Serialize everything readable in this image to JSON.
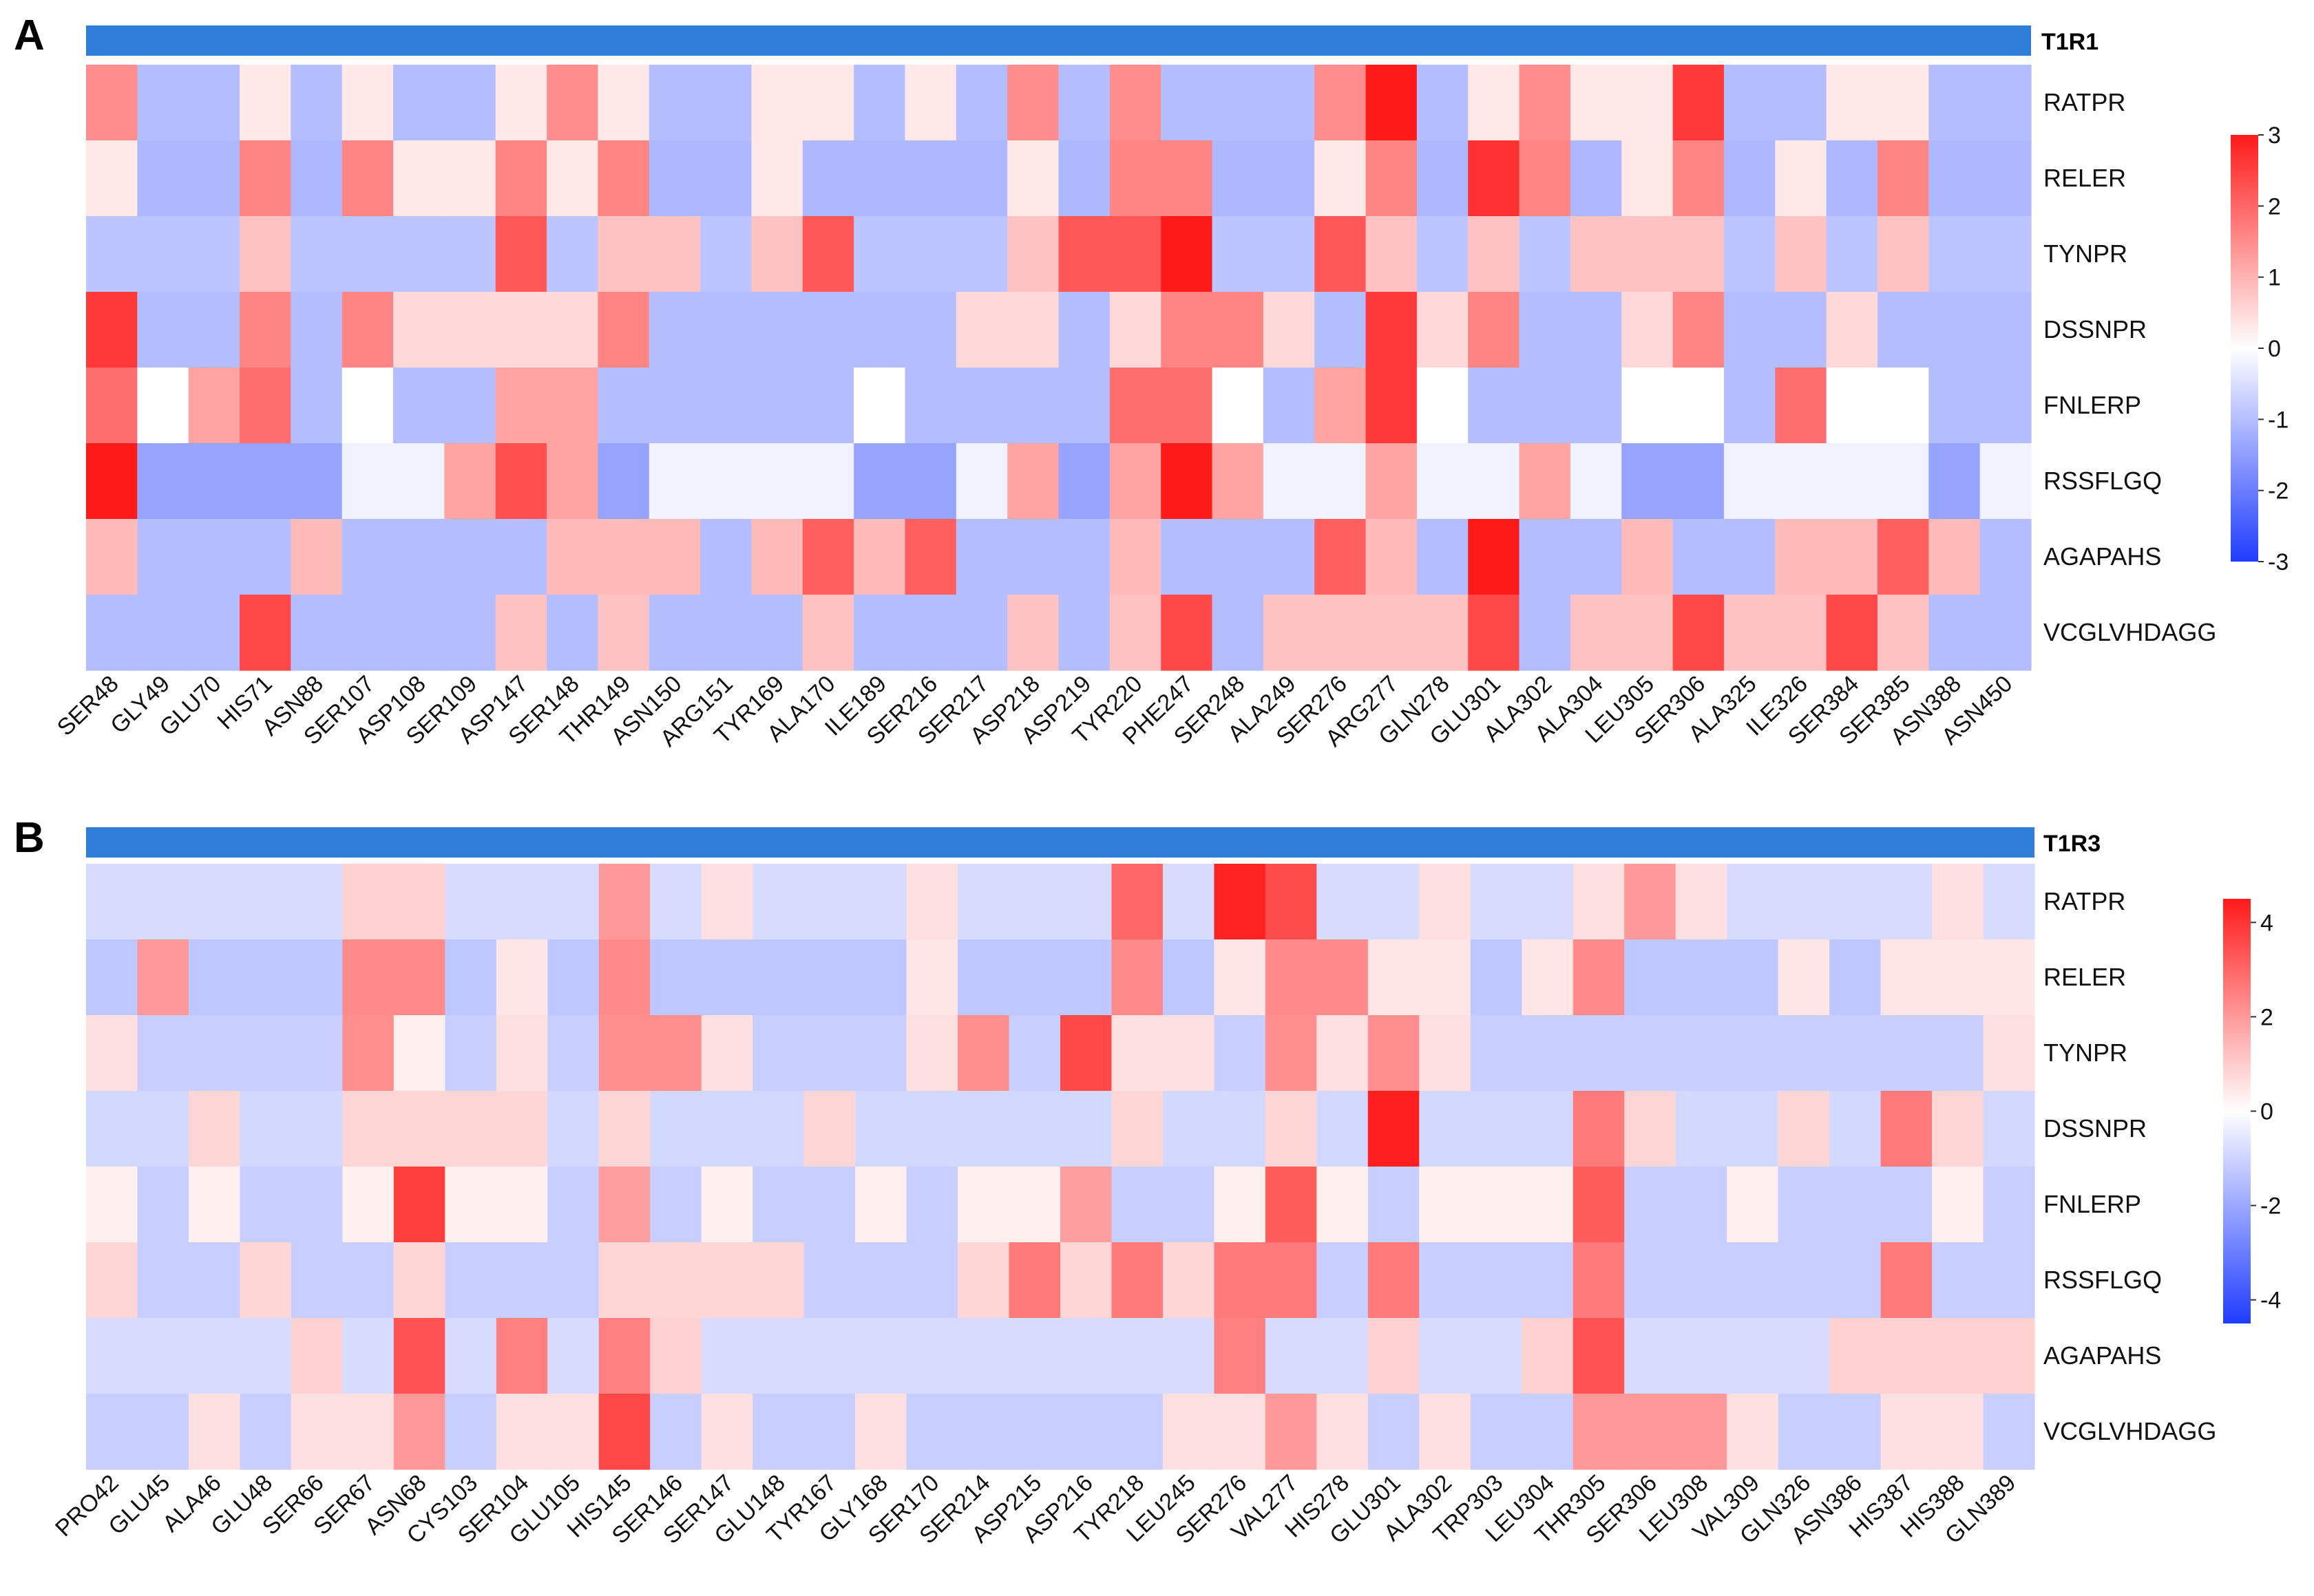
{
  "chart_data": [
    {
      "type": "heatmap",
      "panel_label": "A",
      "receptor": "T1R1",
      "rows": [
        "RATPR",
        "RELER",
        "TYNPR",
        "DSSNPR",
        "FNLERP",
        "RSSFLGQ",
        "AGAPAHS",
        "VCGLVHDAGG"
      ],
      "columns": [
        "SER48",
        "GLY49",
        "GLU70",
        "HIS71",
        "ASN88",
        "SER107",
        "ASP108",
        "SER109",
        "ASP147",
        "SER148",
        "THR149",
        "ASN150",
        "ARG151",
        "TYR169",
        "ALA170",
        "ILE189",
        "SER216",
        "SER217",
        "ASP218",
        "ASP219",
        "TYR220",
        "PHE247",
        "SER248",
        "ALA249",
        "SER276",
        "ARG277",
        "GLN278",
        "GLU301",
        "ALA302",
        "ALA304",
        "LEU305",
        "SER306",
        "ALA325",
        "ILE326",
        "SER384",
        "SER385",
        "ASN388",
        "ASN450"
      ],
      "values": [
        [
          1.5,
          -1.0,
          -1.0,
          0.3,
          -1.0,
          0.3,
          -1.0,
          -1.0,
          0.3,
          1.5,
          0.3,
          -1.0,
          -1.0,
          0.3,
          0.3,
          -1.0,
          0.3,
          -1.0,
          1.5,
          -1.0,
          1.5,
          -1.0,
          -1.0,
          -1.0,
          1.5,
          3.2,
          -1.0,
          0.3,
          1.5,
          0.3,
          0.3,
          2.6,
          -1.0,
          -1.0,
          0.3,
          0.3,
          -1.0,
          -1.0
        ],
        [
          0.3,
          -1.1,
          -1.1,
          1.6,
          -1.1,
          1.6,
          0.3,
          0.3,
          1.6,
          0.3,
          1.6,
          -1.1,
          -1.1,
          0.3,
          -1.1,
          -1.1,
          -1.1,
          -1.1,
          0.3,
          -1.1,
          1.6,
          1.6,
          -1.1,
          -1.1,
          0.3,
          1.6,
          -1.1,
          2.7,
          1.6,
          -1.1,
          0.3,
          1.6,
          -1.1,
          0.3,
          -1.1,
          1.6,
          -1.1,
          -1.1
        ],
        [
          -0.9,
          -0.9,
          -0.9,
          0.8,
          -0.9,
          -0.9,
          -0.9,
          -0.9,
          2.2,
          -0.9,
          0.8,
          0.8,
          -0.9,
          0.8,
          2.2,
          -0.9,
          -0.9,
          -0.9,
          0.8,
          2.2,
          2.2,
          3.0,
          -0.9,
          -0.9,
          2.2,
          0.8,
          -0.9,
          0.8,
          -0.9,
          0.8,
          0.8,
          0.8,
          -0.9,
          0.8,
          -0.9,
          0.8,
          -0.9,
          -0.9
        ],
        [
          2.6,
          -1.0,
          -1.0,
          1.6,
          -1.0,
          1.6,
          0.5,
          0.5,
          0.5,
          0.5,
          1.6,
          -1.0,
          -1.0,
          -1.0,
          -1.0,
          -1.0,
          -1.0,
          0.5,
          0.5,
          -1.0,
          0.5,
          1.6,
          1.6,
          0.5,
          -1.0,
          2.6,
          0.5,
          1.6,
          -1.0,
          -1.0,
          0.5,
          1.6,
          -1.0,
          -1.0,
          0.5,
          -1.0,
          -1.0,
          -1.0
        ],
        [
          1.9,
          0.0,
          1.2,
          1.9,
          -1.0,
          0.0,
          -1.0,
          -1.0,
          1.2,
          1.2,
          -1.0,
          -1.0,
          -1.0,
          -1.0,
          -1.0,
          0.0,
          -1.0,
          -1.0,
          -1.0,
          -1.0,
          1.9,
          1.9,
          0.0,
          -1.0,
          1.2,
          2.6,
          0.0,
          -1.0,
          -1.0,
          -1.0,
          0.0,
          0.0,
          -1.0,
          1.9,
          0.0,
          0.0,
          -1.0,
          -1.0
        ],
        [
          3.0,
          -1.4,
          -1.4,
          -1.4,
          -1.4,
          -0.2,
          -0.2,
          1.2,
          2.3,
          1.2,
          -1.4,
          -0.2,
          -0.2,
          -0.2,
          -0.2,
          -1.4,
          -1.4,
          -0.2,
          1.2,
          -1.4,
          1.2,
          3.0,
          1.2,
          -0.2,
          -0.2,
          1.2,
          -0.2,
          -0.2,
          1.2,
          -0.2,
          -1.4,
          -1.4,
          -0.2,
          -0.2,
          -0.2,
          -0.2,
          -1.4,
          -0.2
        ],
        [
          0.9,
          -1.0,
          -1.0,
          -1.0,
          0.9,
          -1.0,
          -1.0,
          -1.0,
          -1.0,
          0.9,
          0.9,
          0.9,
          -1.0,
          0.9,
          2.1,
          0.9,
          2.1,
          -1.0,
          -1.0,
          -1.0,
          0.9,
          -1.0,
          -1.0,
          -1.0,
          2.1,
          0.9,
          -1.0,
          3.2,
          -1.0,
          -1.0,
          0.9,
          -1.0,
          -1.0,
          0.9,
          0.9,
          2.1,
          0.9,
          -1.0
        ],
        [
          -1.0,
          -1.0,
          -1.0,
          2.4,
          -1.0,
          -1.0,
          -1.0,
          -1.0,
          0.8,
          -1.0,
          0.8,
          -1.0,
          -1.0,
          -1.0,
          0.8,
          -1.0,
          -1.0,
          -1.0,
          0.8,
          -1.0,
          0.8,
          2.4,
          -1.0,
          0.8,
          0.8,
          0.8,
          0.8,
          2.4,
          -1.0,
          0.8,
          0.8,
          2.4,
          0.8,
          0.8,
          2.4,
          0.8,
          -1.0,
          -1.0
        ]
      ],
      "color_scale": {
        "min": -3,
        "max": 3,
        "ticks": [
          "3",
          "2",
          "1",
          "0",
          "-1",
          "-2",
          "-3"
        ],
        "colors": [
          "#1f3cff",
          "#ffffff",
          "#ff1a1a"
        ]
      }
    },
    {
      "type": "heatmap",
      "panel_label": "B",
      "receptor": "T1R3",
      "rows": [
        "RATPR",
        "RELER",
        "TYNPR",
        "DSSNPR",
        "FNLERP",
        "RSSFLGQ",
        "AGAPAHS",
        "VCGLVHDAGG"
      ],
      "columns": [
        "PRO42",
        "GLU45",
        "ALA46",
        "GLU48",
        "SER66",
        "SER67",
        "ASN68",
        "CYS103",
        "SER104",
        "GLU105",
        "HIS145",
        "SER146",
        "SER147",
        "GLU148",
        "TYR167",
        "GLY168",
        "SER170",
        "SER214",
        "ASP215",
        "ASP216",
        "TYR218",
        "LEU245",
        "SER276",
        "VAL277",
        "HIS278",
        "GLU301",
        "ALA302",
        "TRP303",
        "LEU304",
        "THR305",
        "SER306",
        "LEU308",
        "VAL309",
        "GLN326",
        "ASN386",
        "HIS387",
        "HIS388",
        "GLN389"
      ],
      "values": [
        [
          -0.8,
          -0.8,
          -0.8,
          -0.8,
          -0.8,
          0.9,
          0.9,
          -0.8,
          -0.8,
          -0.8,
          2.0,
          -0.8,
          0.6,
          -0.8,
          -0.8,
          -0.8,
          0.6,
          -0.8,
          -0.8,
          -0.8,
          3.0,
          -0.8,
          4.3,
          3.5,
          -0.8,
          -0.8,
          0.6,
          -0.8,
          -0.8,
          0.6,
          2.0,
          0.6,
          -0.8,
          -0.8,
          -0.8,
          -0.8,
          0.6,
          -0.8
        ],
        [
          -1.3,
          2.0,
          -1.3,
          -1.3,
          -1.3,
          2.3,
          2.3,
          -1.3,
          0.5,
          -1.3,
          2.3,
          -1.3,
          -1.3,
          -1.3,
          -1.3,
          -1.3,
          0.5,
          -1.3,
          -1.3,
          -1.3,
          2.3,
          -1.3,
          0.5,
          2.3,
          2.3,
          0.5,
          0.5,
          -1.3,
          0.5,
          2.3,
          -1.3,
          -1.3,
          -1.3,
          0.5,
          -1.3,
          0.5,
          0.5,
          0.5
        ],
        [
          0.6,
          -1.1,
          -1.1,
          -1.1,
          -1.1,
          2.2,
          0.3,
          -1.1,
          0.6,
          -1.1,
          2.2,
          2.2,
          0.6,
          -1.1,
          -1.1,
          -1.1,
          0.6,
          2.2,
          -1.1,
          3.6,
          0.6,
          0.6,
          -1.1,
          2.2,
          0.6,
          2.2,
          0.6,
          -1.1,
          -1.1,
          -1.1,
          -1.1,
          -1.1,
          -1.1,
          -1.1,
          -1.1,
          -1.1,
          -1.1,
          0.6
        ],
        [
          -0.9,
          -0.9,
          0.8,
          -0.9,
          -0.9,
          0.8,
          0.8,
          0.8,
          0.8,
          -0.9,
          0.8,
          -0.9,
          -0.9,
          -0.9,
          0.8,
          -0.9,
          -0.9,
          -0.9,
          -0.9,
          -0.9,
          0.8,
          -0.9,
          -0.9,
          0.8,
          -0.9,
          4.4,
          -0.9,
          -0.9,
          -0.9,
          2.6,
          0.8,
          -0.9,
          -0.9,
          0.8,
          -0.9,
          2.6,
          0.8,
          -0.9
        ],
        [
          0.3,
          -1.1,
          0.3,
          -1.1,
          -1.1,
          0.3,
          3.8,
          0.3,
          0.3,
          -1.1,
          1.9,
          -1.1,
          0.3,
          -1.1,
          -1.1,
          0.3,
          -1.1,
          0.3,
          0.3,
          1.9,
          -1.1,
          -1.1,
          0.3,
          3.2,
          0.3,
          -1.1,
          0.3,
          0.3,
          0.3,
          3.2,
          -1.1,
          -1.1,
          0.3,
          -1.1,
          -1.1,
          -1.1,
          0.3,
          -1.1
        ],
        [
          0.8,
          -1.1,
          -1.1,
          0.8,
          -1.1,
          -1.1,
          0.8,
          -1.1,
          -1.1,
          -1.1,
          0.8,
          0.8,
          0.8,
          0.8,
          -1.1,
          -1.1,
          -1.1,
          0.8,
          2.6,
          0.8,
          2.6,
          0.8,
          2.6,
          2.6,
          -1.1,
          2.6,
          -1.1,
          -1.1,
          -1.1,
          2.6,
          -1.1,
          -1.1,
          -1.1,
          -1.1,
          -1.1,
          2.6,
          -1.1,
          -1.1
        ],
        [
          -0.8,
          -0.8,
          -0.8,
          -0.8,
          0.9,
          -0.8,
          3.4,
          -0.8,
          2.5,
          -0.8,
          2.5,
          0.9,
          -0.8,
          -0.8,
          -0.8,
          -0.8,
          -0.8,
          -0.8,
          -0.8,
          -0.8,
          -0.8,
          -0.8,
          2.5,
          -0.8,
          -0.8,
          0.9,
          -0.8,
          -0.8,
          0.9,
          3.4,
          -0.8,
          -0.8,
          -0.8,
          -0.8,
          0.9,
          0.9,
          0.9,
          0.9
        ],
        [
          -1.1,
          -1.1,
          0.6,
          -1.1,
          0.6,
          0.6,
          2.0,
          -1.1,
          0.6,
          0.6,
          3.6,
          -1.1,
          0.6,
          -1.1,
          -1.1,
          0.6,
          -1.1,
          -1.1,
          -1.1,
          -1.1,
          -1.1,
          0.6,
          0.6,
          2.0,
          0.6,
          -1.1,
          0.6,
          -1.1,
          -1.1,
          2.0,
          2.0,
          2.0,
          0.6,
          -1.1,
          -1.1,
          0.6,
          0.6,
          -1.1
        ]
      ],
      "color_scale": {
        "min": -4.5,
        "max": 4.5,
        "ticks": [
          "4",
          "2",
          "0",
          "-2",
          "-4"
        ],
        "colors": [
          "#1f3cff",
          "#ffffff",
          "#ff1a1a"
        ]
      }
    }
  ]
}
